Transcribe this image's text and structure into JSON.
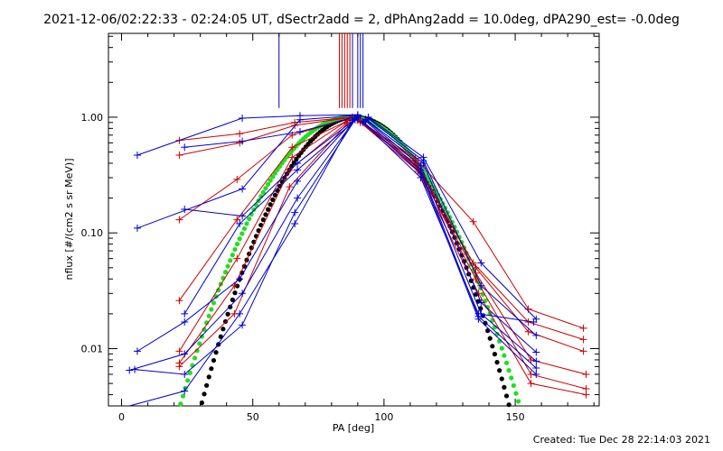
{
  "title": "2021-12-06/02:22:33 - 02:24:05 UT, dSectr2add = 2, dPhAng2add = 10.0deg, dPA290_est= -0.0deg",
  "footer": "Created: Tue Dec 28 22:14:03 2021",
  "chart_data": {
    "type": "line",
    "title": "2021-12-06/02:22:33 - 02:24:05 UT, dSectr2add = 2, dPhAng2add = 10.0deg, dPA290_est= -0.0deg",
    "xlabel": "PA [deg]",
    "ylabel": "nflux [#/(cm2 s sr MeV)]",
    "xlim": [
      -5,
      182
    ],
    "ylim": [
      0.0032,
      5.3
    ],
    "yscale": "log",
    "xticks": [
      0,
      50,
      100,
      150
    ],
    "yticks": [
      0.01,
      0.1,
      1.0
    ],
    "ytick_labels": [
      "0.01",
      "0.10",
      "1.00"
    ],
    "grid": false,
    "top_markers": {
      "blue": [
        60,
        88,
        90,
        91,
        92
      ],
      "red": [
        83,
        84,
        85,
        86,
        87
      ]
    },
    "colors": {
      "red": "#cc0000",
      "blue": "#0000cc",
      "green": "#22dd22",
      "black": "#000000"
    },
    "series": [
      {
        "color": "red",
        "x": [
          22,
          45,
          66,
          88
        ],
        "y": [
          0.63,
          0.72,
          0.9,
          1.0
        ]
      },
      {
        "color": "red",
        "x": [
          22,
          45,
          66,
          88
        ],
        "y": [
          0.47,
          0.6,
          0.85,
          1.0
        ]
      },
      {
        "color": "red",
        "x": [
          22,
          44,
          65,
          87
        ],
        "y": [
          0.13,
          0.29,
          0.7,
          0.98
        ]
      },
      {
        "color": "red",
        "x": [
          22,
          44,
          65,
          87
        ],
        "y": [
          0.026,
          0.13,
          0.55,
          0.95
        ]
      },
      {
        "color": "red",
        "x": [
          22,
          44,
          65,
          86
        ],
        "y": [
          0.0095,
          0.06,
          0.45,
          0.93
        ]
      },
      {
        "color": "red",
        "x": [
          22,
          43,
          64,
          86
        ],
        "y": [
          0.0075,
          0.035,
          0.35,
          0.9
        ]
      },
      {
        "color": "red",
        "x": [
          22,
          43,
          64,
          86
        ],
        "y": [
          0.007,
          0.02,
          0.25,
          0.88
        ]
      },
      {
        "color": "red",
        "x": [
          90,
          112,
          134,
          155,
          176
        ],
        "y": [
          0.96,
          0.44,
          0.125,
          0.022,
          0.015
        ]
      },
      {
        "color": "red",
        "x": [
          90,
          112,
          134,
          155,
          176
        ],
        "y": [
          0.95,
          0.42,
          0.055,
          0.017,
          0.012
        ]
      },
      {
        "color": "red",
        "x": [
          90,
          112,
          135,
          155,
          176
        ],
        "y": [
          0.94,
          0.4,
          0.05,
          0.014,
          0.0095
        ]
      },
      {
        "color": "red",
        "x": [
          91,
          112,
          135,
          156,
          177
        ],
        "y": [
          0.93,
          0.38,
          0.045,
          0.008,
          0.006
        ]
      },
      {
        "color": "red",
        "x": [
          91,
          113,
          135,
          156,
          177
        ],
        "y": [
          0.92,
          0.36,
          0.04,
          0.006,
          0.0045
        ]
      },
      {
        "color": "red",
        "x": [
          91,
          113,
          136,
          156,
          177
        ],
        "y": [
          0.9,
          0.34,
          0.03,
          0.005,
          0.004
        ]
      },
      {
        "color": "blue",
        "x": [
          6,
          46,
          68,
          90
        ],
        "y": [
          0.47,
          0.98,
          1.03,
          1.05
        ]
      },
      {
        "color": "blue",
        "x": [
          6,
          46,
          68,
          90
        ],
        "y": [
          0.11,
          0.24,
          0.95,
          1.04
        ]
      },
      {
        "color": "blue",
        "x": [
          24,
          46,
          68,
          90
        ],
        "y": [
          0.55,
          0.62,
          0.75,
          1.02
        ]
      },
      {
        "color": "blue",
        "x": [
          24,
          46,
          67,
          90
        ],
        "y": [
          0.16,
          0.14,
          0.4,
          1.0
        ]
      },
      {
        "color": "blue",
        "x": [
          24,
          45,
          67,
          90
        ],
        "y": [
          0.02,
          0.12,
          0.35,
          0.98
        ]
      },
      {
        "color": "blue",
        "x": [
          6,
          24,
          45,
          67,
          89
        ],
        "y": [
          0.0095,
          0.017,
          0.04,
          0.28,
          0.97
        ]
      },
      {
        "color": "blue",
        "x": [
          3,
          24,
          46,
          67,
          89
        ],
        "y": [
          0.0065,
          0.009,
          0.03,
          0.2,
          0.96
        ]
      },
      {
        "color": "blue",
        "x": [
          5,
          24,
          46,
          66,
          89
        ],
        "y": [
          0.0066,
          0.006,
          0.016,
          0.15,
          0.95
        ]
      },
      {
        "color": "blue",
        "x": [
          3,
          24,
          45,
          66,
          88
        ],
        "y": [
          0.0032,
          0.0043,
          0.02,
          0.12,
          0.94
        ]
      },
      {
        "color": "blue",
        "x": [
          94,
          115,
          137,
          158
        ],
        "y": [
          1.0,
          0.45,
          0.055,
          0.018
        ]
      },
      {
        "color": "blue",
        "x": [
          94,
          115,
          137,
          158
        ],
        "y": [
          0.98,
          0.42,
          0.035,
          0.013
        ]
      },
      {
        "color": "blue",
        "x": [
          93,
          115,
          137,
          158
        ],
        "y": [
          0.96,
          0.4,
          0.025,
          0.0093
        ]
      },
      {
        "color": "blue",
        "x": [
          93,
          114,
          137,
          158
        ],
        "y": [
          0.95,
          0.38,
          0.02,
          0.0078
        ]
      },
      {
        "color": "blue",
        "x": [
          93,
          114,
          136,
          158
        ],
        "y": [
          0.93,
          0.35,
          0.019,
          0.0068
        ]
      },
      {
        "color": "blue",
        "x": [
          92,
          114,
          136,
          158
        ],
        "y": [
          0.92,
          0.33,
          0.018,
          0.006
        ]
      },
      {
        "color": "blue",
        "x": [
          92,
          114,
          136,
          157
        ],
        "y": [
          0.9,
          0.3,
          0.02,
          0.017
        ]
      }
    ],
    "fits": [
      {
        "color": "black",
        "center": 89,
        "width": 24.5
      },
      {
        "color": "green",
        "center": 87,
        "width": 27
      }
    ]
  }
}
